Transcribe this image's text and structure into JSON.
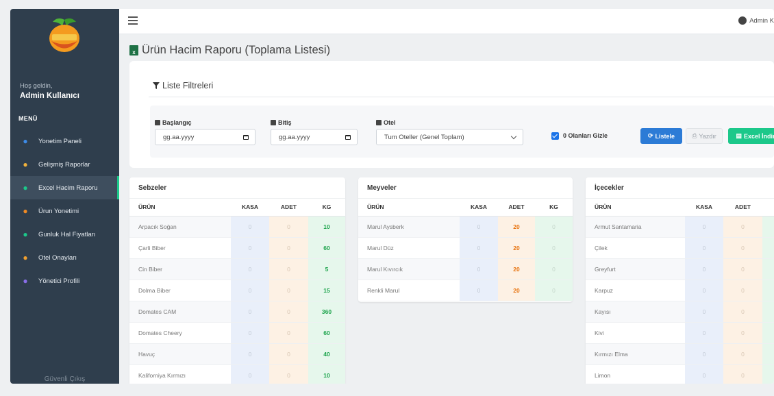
{
  "sidebar": {
    "welcome": "Hoş geldin,",
    "admin_name": "Admin Kullanıcı",
    "menu_header": "MENÜ",
    "items": [
      {
        "label": "Yonetim Paneli",
        "icon": "chart-line-icon",
        "color": "#3d8be8"
      },
      {
        "label": "Gelişmiş Raporlar",
        "icon": "pie-chart-icon",
        "color": "#f0b13c"
      },
      {
        "label": "Excel Hacim Raporu",
        "icon": "excel-file-icon",
        "color": "#1cc88a"
      },
      {
        "label": "Ürun Yonetimi",
        "icon": "carrot-icon",
        "color": "#f08a24"
      },
      {
        "label": "Gunluk Hal Fiyatları",
        "icon": "scale-icon",
        "color": "#1cc88a"
      },
      {
        "label": "Otel Onayları",
        "icon": "user-check-icon",
        "color": "#f0a030"
      },
      {
        "label": "Yönetici Profili",
        "icon": "user-gear-icon",
        "color": "#8a6ee8"
      }
    ],
    "active_index": 2,
    "logout": "Güvenli Çıkış"
  },
  "topbar": {
    "user": "Admin K"
  },
  "page": {
    "title": "Ürün Hacim Raporu (Toplama Listesi)"
  },
  "filters": {
    "title": "Liste Filtreleri",
    "start_label": "Başlangıç",
    "start_value": "gg.aa.yyyy",
    "end_label": "Bitiş",
    "end_value": "gg.aa.yyyy",
    "hotel_label": "Otel",
    "hotel_value": "Tum Oteller (Genel Toplam)",
    "hide_zero_label": "0 Olanları Gizle",
    "hide_zero_checked": true,
    "btn_list": "Listele",
    "btn_print": "Yazdır",
    "btn_excel": "Excel İndir"
  },
  "tables": {
    "sebzeler": {
      "title": "Sebzeler",
      "headers": [
        "ÜRÜN",
        "KASA",
        "ADET",
        "KG"
      ],
      "rows": [
        [
          "Arpacık Soğan",
          "0",
          "0",
          "10"
        ],
        [
          "Çarli Biber",
          "0",
          "0",
          "60"
        ],
        [
          "Cin Biber",
          "0",
          "0",
          "5"
        ],
        [
          "Dolma Biber",
          "0",
          "0",
          "15"
        ],
        [
          "Domates CAM",
          "0",
          "0",
          "360"
        ],
        [
          "Domates Cheery",
          "0",
          "0",
          "60"
        ],
        [
          "Havuç",
          "0",
          "0",
          "40"
        ],
        [
          "Kaliforniya Kırmızı",
          "0",
          "0",
          "10"
        ]
      ]
    },
    "meyveler": {
      "title": "Meyveler",
      "headers": [
        "ÜRÜN",
        "KASA",
        "ADET",
        "KG"
      ],
      "rows": [
        [
          "Marul Aysberk",
          "0",
          "20",
          "0"
        ],
        [
          "Marul Düz",
          "0",
          "20",
          "0"
        ],
        [
          "Marul Kıvırcık",
          "0",
          "20",
          "0"
        ],
        [
          "Renkli Marul",
          "0",
          "20",
          "0"
        ]
      ]
    },
    "icecekler": {
      "title": "İçecekler",
      "headers": [
        "ÜRÜN",
        "KASA",
        "ADET"
      ],
      "rows": [
        [
          "Armut Santamaria",
          "0",
          "0"
        ],
        [
          "Çilek",
          "0",
          "0"
        ],
        [
          "Greyfurt",
          "0",
          "0"
        ],
        [
          "Karpuz",
          "0",
          "0"
        ],
        [
          "Kayısı",
          "0",
          "0"
        ],
        [
          "Kivi",
          "0",
          "0"
        ],
        [
          "Kırmızı Elma",
          "0",
          "0"
        ],
        [
          "Limon",
          "0",
          "0"
        ]
      ]
    }
  }
}
